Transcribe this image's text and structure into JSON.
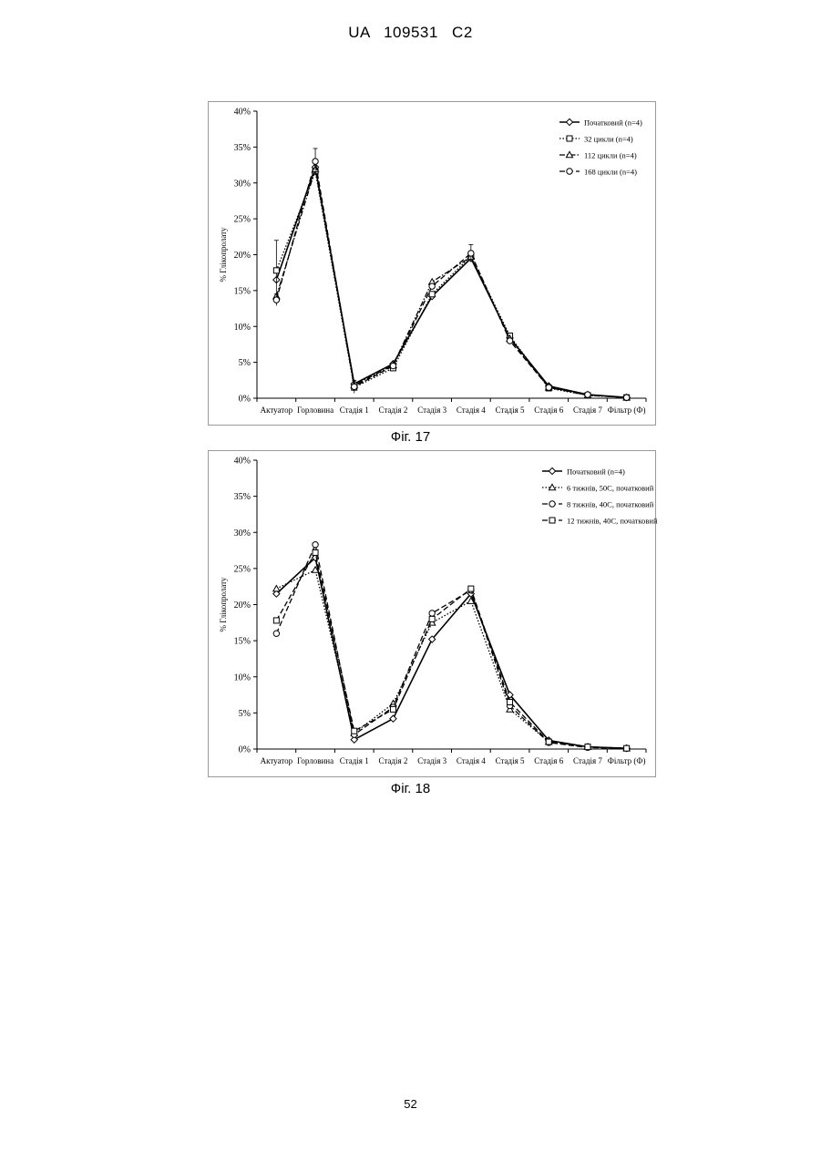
{
  "page": {
    "header": "UA 109531 C2",
    "page_number": "52"
  },
  "figures": [
    {
      "caption": "Фіг. 17"
    },
    {
      "caption": "Фіг. 18"
    }
  ],
  "chart_data": [
    {
      "id": "fig17",
      "type": "line",
      "title": "",
      "xlabel": "",
      "ylabel": "% Глікопролату",
      "categories": [
        "Актуатор",
        "Горловина",
        "Стадія 1",
        "Стадія 2",
        "Стадія 3",
        "Стадія 4",
        "Стадія 5",
        "Стадія 6",
        "Стадія 7",
        "Фільтр (Ф)"
      ],
      "y_ticks": [
        "0%",
        "5%",
        "10%",
        "15%",
        "20%",
        "25%",
        "30%",
        "35%",
        "40%"
      ],
      "ylim": [
        0,
        40
      ],
      "grid": false,
      "legend": "top-right",
      "series": [
        {
          "name": "Початковий (n=4)",
          "marker": "diamond",
          "dash": "solid",
          "values": [
            16.5,
            32.2,
            2.0,
            4.8,
            14.2,
            19.5,
            8.4,
            1.7,
            0.5,
            0.1
          ],
          "error": [
            0,
            0,
            0,
            0,
            0,
            0,
            0,
            0,
            0,
            0
          ]
        },
        {
          "name": "32 цикли (n=4)",
          "marker": "square",
          "dash": "dotted",
          "values": [
            17.8,
            31.6,
            1.5,
            4.2,
            14.5,
            19.8,
            8.7,
            1.4,
            0.4,
            0.1
          ],
          "error": [
            4.2,
            0,
            0,
            0,
            0,
            0,
            0,
            0,
            0,
            0
          ]
        },
        {
          "name": "112 цикли (n=4)",
          "marker": "triangle",
          "dash": "dashdot",
          "values": [
            14.2,
            31.9,
            1.8,
            4.6,
            16.2,
            19.7,
            8.3,
            1.5,
            0.4,
            0.1
          ],
          "error": [
            0,
            0,
            0,
            0,
            0,
            0,
            0,
            0,
            0,
            0
          ]
        },
        {
          "name": "168 цикли (n=4)",
          "marker": "circle",
          "dash": "dashed",
          "values": [
            13.7,
            33.0,
            1.6,
            4.5,
            15.6,
            20.2,
            8.0,
            1.5,
            0.5,
            0.1
          ],
          "error": [
            0.8,
            1.8,
            0.9,
            0,
            0,
            1.2,
            0,
            0,
            0,
            0
          ]
        }
      ]
    },
    {
      "id": "fig18",
      "type": "line",
      "title": "",
      "xlabel": "",
      "ylabel": "% Глікопролату",
      "categories": [
        "Актуатор",
        "Горловина",
        "Стадія 1",
        "Стадія 2",
        "Стадія 3",
        "Стадія 4",
        "Стадія 5",
        "Стадія 6",
        "Стадія 7",
        "Фільтр (Ф)"
      ],
      "y_ticks": [
        "0%",
        "5%",
        "10%",
        "15%",
        "20%",
        "25%",
        "30%",
        "35%",
        "40%"
      ],
      "ylim": [
        0,
        40
      ],
      "grid": false,
      "legend": "top-right",
      "series": [
        {
          "name": "Початковий (n=4)",
          "marker": "diamond",
          "dash": "solid",
          "values": [
            21.5,
            26.5,
            1.3,
            4.2,
            15.2,
            21.5,
            7.5,
            1.2,
            0.3,
            0.1
          ],
          "error": [
            0,
            0,
            0,
            0,
            0,
            0,
            0,
            0,
            0,
            0
          ]
        },
        {
          "name": "6 тижнів, 50С, початковий",
          "marker": "triangle",
          "dash": "dotted",
          "values": [
            22.2,
            24.8,
            2.2,
            6.3,
            17.5,
            20.5,
            5.5,
            1.0,
            0.3,
            0.1
          ],
          "error": [
            0,
            0,
            0,
            0,
            0,
            0,
            0,
            0,
            0,
            0
          ]
        },
        {
          "name": "8 тижнів, 40С, початковий",
          "marker": "circle",
          "dash": "dashed",
          "values": [
            16.0,
            28.3,
            2.0,
            5.8,
            18.8,
            22.0,
            6.0,
            0.9,
            0.2,
            0.1
          ],
          "error": [
            0,
            0,
            0,
            0,
            0,
            0,
            0,
            0,
            0,
            0
          ]
        },
        {
          "name": "12 тижнів, 40С, початковий",
          "marker": "square",
          "dash": "dashed",
          "values": [
            17.8,
            27.2,
            2.5,
            5.5,
            18.0,
            22.2,
            6.5,
            1.0,
            0.3,
            0.1
          ],
          "error": [
            0,
            0,
            0,
            0,
            0,
            0,
            0,
            0,
            0,
            0
          ]
        }
      ]
    }
  ]
}
